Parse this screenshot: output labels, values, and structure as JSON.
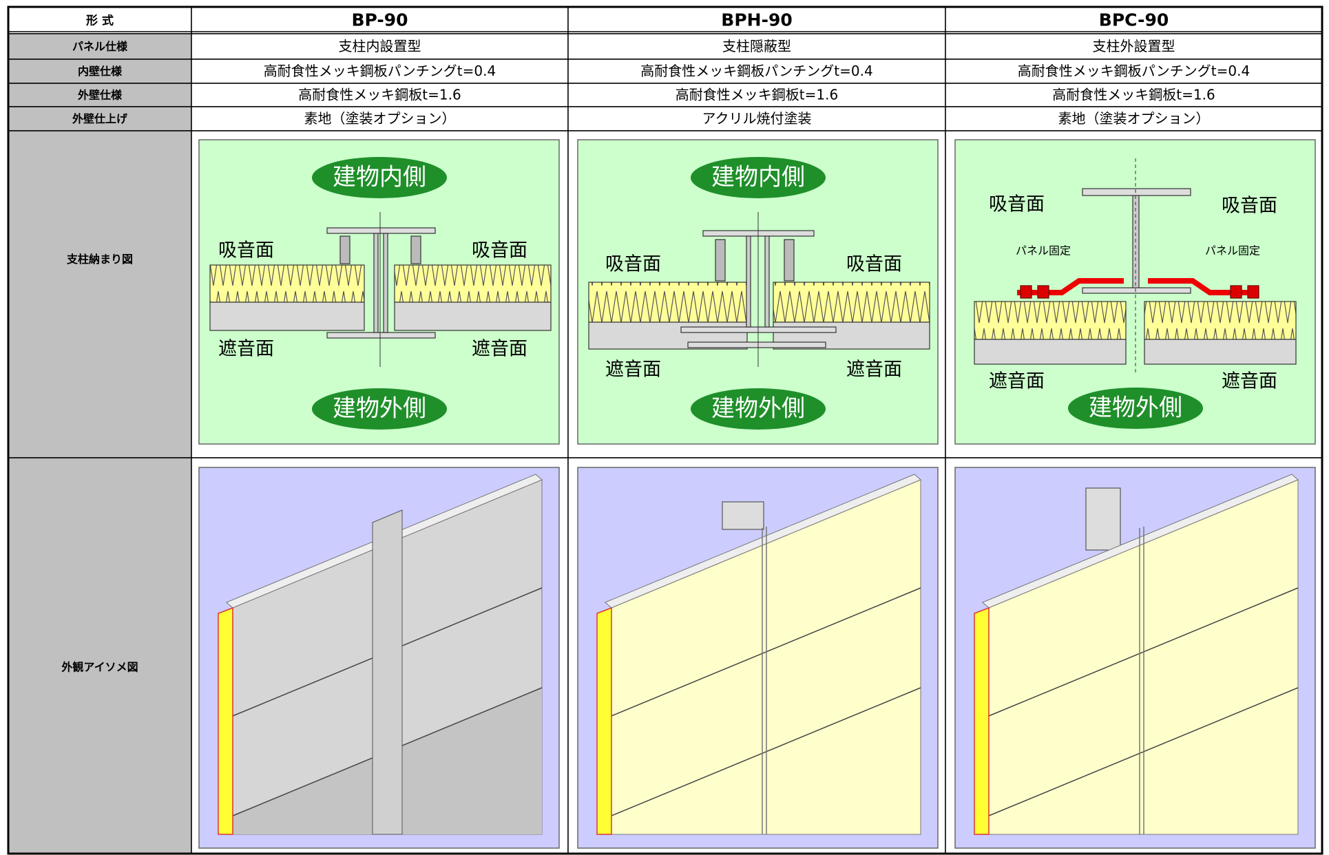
{
  "table": {
    "header": [
      "形 式",
      "BP-90",
      "BPH-90",
      "BPC-90"
    ],
    "rows": [
      [
        "パネル仕様",
        "支柱内設置型",
        "支柱隠蔽型",
        "支柱外設置型"
      ],
      [
        "内壁仕様",
        "高耐食性メッキ鋼板パンチングt=0.4",
        "高耐食性メッキ鋼板パンチングt=0.4",
        "高耐食性メッキ鋼板パンチングt=0.4"
      ],
      [
        "外壁仕様",
        "高耐食性メッキ鋼板t=1.6",
        "高耐食性メッキ鋼板t=1.6",
        "高耐食性メッキ鋼板t=1.6"
      ],
      [
        "外壁仕上げ",
        "素地（塗装オプション）",
        "アクリル焼付塗装",
        "素地（塗装オプション）"
      ]
    ],
    "detail_row": {
      "label": "支柱納まり図",
      "diagrams": [
        {
          "inside": "建物内側",
          "outside": "建物外側",
          "absorb_left": "吸音面",
          "absorb_right": "吸音面",
          "block_left": "遮音面",
          "block_right": "遮音面"
        },
        {
          "inside": "建物内側",
          "outside": "建物外側",
          "absorb_left": "吸音面",
          "absorb_right": "吸音面",
          "block_left": "遮音面",
          "block_right": "遮音面"
        },
        {
          "outside": "建物外側",
          "absorb_left": "吸音面",
          "absorb_right": "吸音面",
          "block_left": "遮音面",
          "block_right": "遮音面",
          "fix_left": "パネル固定",
          "fix_right": "パネル固定"
        }
      ]
    },
    "isometric_row": {
      "label": "外観アイソメ図"
    }
  }
}
